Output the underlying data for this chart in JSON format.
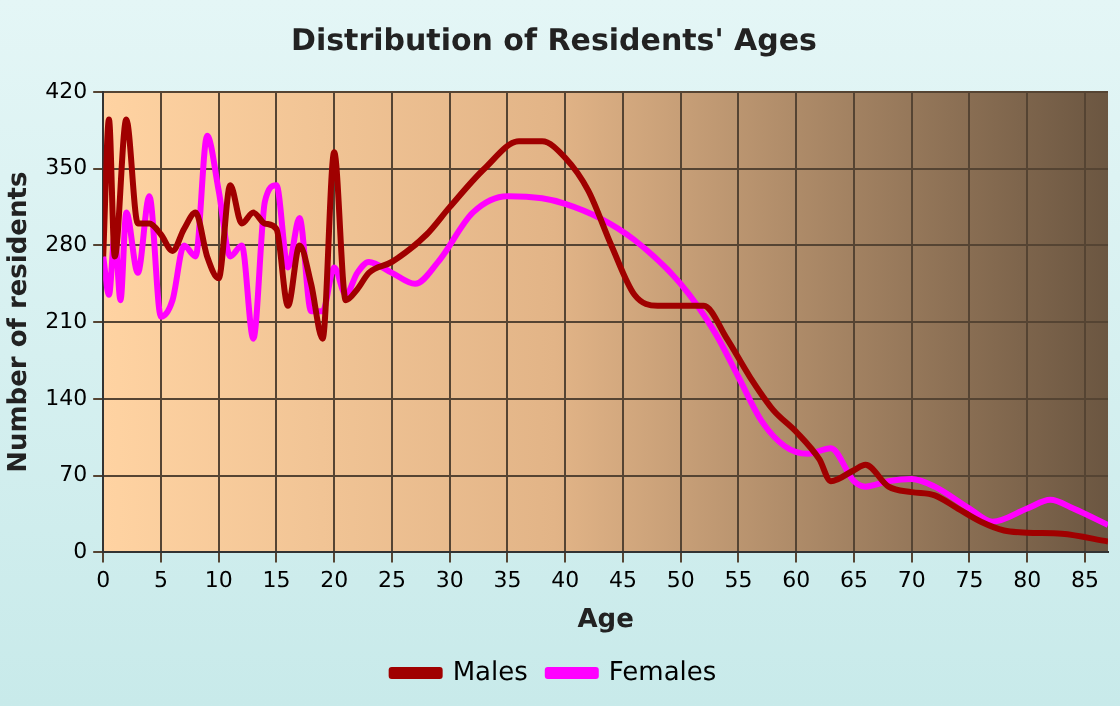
{
  "chart_data": {
    "type": "line",
    "title": "Distribution of Residents' Ages",
    "xlabel": "Age",
    "ylabel": "Number of residents",
    "xlim": [
      0,
      87
    ],
    "xticks": [
      0,
      5,
      10,
      15,
      20,
      25,
      30,
      35,
      40,
      45,
      50,
      55,
      60,
      65,
      70,
      75,
      80,
      85
    ],
    "ylim": [
      0,
      420
    ],
    "yticks": [
      0,
      70,
      140,
      210,
      280,
      350,
      420
    ],
    "grid": true,
    "legend": "bottom",
    "marker": "none",
    "line_style": "solid",
    "series": [
      {
        "name": "Males",
        "color": "#a00000",
        "x": [
          0,
          0.5,
          1,
          2,
          3,
          4,
          5,
          6,
          7,
          8,
          9,
          10,
          11,
          12,
          13,
          14,
          15,
          16,
          17,
          18,
          19,
          20,
          21,
          22,
          23,
          25,
          28,
          30,
          33,
          36,
          38,
          40,
          42,
          44,
          46,
          48,
          50,
          52,
          54,
          56,
          58,
          60,
          62,
          63,
          65,
          66,
          68,
          70,
          72,
          74,
          76,
          78,
          80,
          83,
          87
        ],
        "values": [
          270,
          395,
          270,
          395,
          300,
          300,
          290,
          275,
          295,
          310,
          270,
          250,
          335,
          300,
          310,
          300,
          295,
          225,
          280,
          245,
          195,
          365,
          230,
          240,
          255,
          265,
          290,
          315,
          350,
          375,
          375,
          360,
          330,
          280,
          235,
          225,
          225,
          225,
          195,
          160,
          130,
          110,
          85,
          65,
          75,
          80,
          60,
          55,
          52,
          40,
          28,
          20,
          18,
          17,
          10
        ]
      },
      {
        "name": "Females",
        "color": "#ff00ff",
        "x": [
          0,
          0.5,
          1,
          1.5,
          2,
          3,
          4,
          5,
          6,
          7,
          8,
          9,
          10,
          11,
          12,
          13,
          14,
          15,
          16,
          17,
          18,
          19,
          20,
          21,
          22,
          23,
          25,
          27,
          29,
          32,
          35,
          38,
          40,
          43,
          46,
          50,
          53,
          55,
          57,
          59,
          61,
          63,
          65,
          66,
          68,
          70,
          72,
          75,
          77,
          80,
          82,
          84,
          87
        ],
        "values": [
          270,
          235,
          290,
          230,
          310,
          255,
          325,
          215,
          230,
          280,
          270,
          380,
          330,
          270,
          280,
          195,
          320,
          335,
          260,
          305,
          220,
          220,
          260,
          235,
          255,
          265,
          255,
          245,
          265,
          310,
          325,
          323,
          318,
          305,
          285,
          245,
          200,
          160,
          120,
          97,
          90,
          95,
          65,
          60,
          65,
          67,
          60,
          40,
          28,
          40,
          48,
          40,
          25
        ]
      }
    ]
  }
}
